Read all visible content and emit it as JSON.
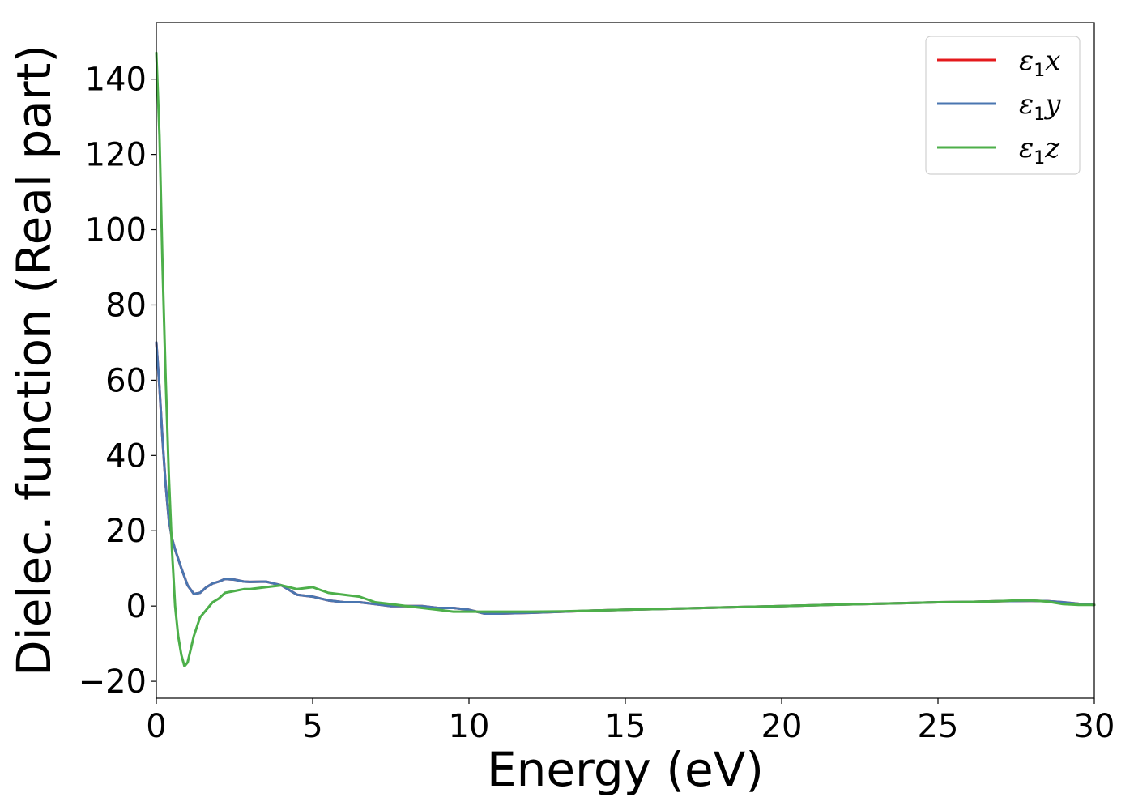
{
  "chart_data": {
    "type": "line",
    "title": "",
    "xlabel": "Energy (eV)",
    "ylabel": "Dielec. function (Real part)",
    "xlim": [
      0,
      30
    ],
    "ylim": [
      -24.5,
      155
    ],
    "xticks": [
      0,
      5,
      10,
      15,
      20,
      25,
      30
    ],
    "yticks": [
      -20,
      0,
      20,
      40,
      60,
      80,
      100,
      120,
      140
    ],
    "xtick_labels": [
      "0",
      "5",
      "10",
      "15",
      "20",
      "25",
      "30"
    ],
    "ytick_labels": [
      "−20",
      "0",
      "20",
      "40",
      "60",
      "80",
      "100",
      "120",
      "140"
    ],
    "grid": false,
    "legend_position": "top-right",
    "series": [
      {
        "name": "ε1x",
        "legend_symbol": "ε",
        "legend_sub": "1",
        "legend_var": "x",
        "color": "#e41a1c",
        "x": [
          0,
          0.1,
          0.2,
          0.3,
          0.4,
          0.5,
          0.6,
          0.8,
          1.0,
          1.2,
          1.4,
          1.6,
          1.8,
          2.0,
          2.2,
          2.5,
          2.8,
          3.0,
          3.5,
          4.0,
          4.5,
          5.0,
          5.5,
          6.0,
          6.5,
          7.0,
          7.5,
          8.0,
          8.5,
          9.0,
          9.5,
          10.0,
          10.5,
          11.0,
          12.0,
          13.0,
          14.0,
          15.0,
          16.0,
          17.0,
          18.0,
          19.0,
          20.0,
          21.0,
          22.0,
          23.0,
          24.0,
          25.0,
          26.0,
          27.0,
          28.0,
          28.5,
          29.0,
          29.5,
          30.0
        ],
        "y": [
          70,
          58,
          44,
          32,
          23,
          18,
          15,
          10,
          5.5,
          3.2,
          3.5,
          5.0,
          6.0,
          6.5,
          7.2,
          7.0,
          6.5,
          6.4,
          6.5,
          5.5,
          3.0,
          2.5,
          1.5,
          1.0,
          1.0,
          0.5,
          0.0,
          0.0,
          0.0,
          -0.5,
          -0.5,
          -1.0,
          -2.0,
          -2.0,
          -1.8,
          -1.5,
          -1.2,
          -1.0,
          -0.8,
          -0.6,
          -0.4,
          -0.2,
          0.0,
          0.2,
          0.4,
          0.6,
          0.8,
          1.0,
          1.1,
          1.3,
          1.4,
          1.3,
          1.0,
          0.6,
          0.3
        ]
      },
      {
        "name": "ε1y",
        "legend_symbol": "ε",
        "legend_sub": "1",
        "legend_var": "y",
        "color": "#4a76b0",
        "x": [
          0,
          0.1,
          0.2,
          0.3,
          0.4,
          0.5,
          0.6,
          0.8,
          1.0,
          1.2,
          1.4,
          1.6,
          1.8,
          2.0,
          2.2,
          2.5,
          2.8,
          3.0,
          3.5,
          4.0,
          4.5,
          5.0,
          5.5,
          6.0,
          6.5,
          7.0,
          7.5,
          8.0,
          8.5,
          9.0,
          9.5,
          10.0,
          10.5,
          11.0,
          12.0,
          13.0,
          14.0,
          15.0,
          16.0,
          17.0,
          18.0,
          19.0,
          20.0,
          21.0,
          22.0,
          23.0,
          24.0,
          25.0,
          26.0,
          27.0,
          28.0,
          28.5,
          29.0,
          29.5,
          30.0
        ],
        "y": [
          70,
          58,
          44,
          32,
          23,
          18,
          15,
          10,
          5.5,
          3.2,
          3.5,
          5.0,
          6.0,
          6.5,
          7.2,
          7.0,
          6.5,
          6.4,
          6.5,
          5.5,
          3.0,
          2.5,
          1.5,
          1.0,
          1.0,
          0.5,
          0.0,
          0.0,
          0.0,
          -0.5,
          -0.5,
          -1.0,
          -2.0,
          -2.0,
          -1.8,
          -1.5,
          -1.2,
          -1.0,
          -0.8,
          -0.6,
          -0.4,
          -0.2,
          0.0,
          0.2,
          0.4,
          0.6,
          0.8,
          1.0,
          1.1,
          1.3,
          1.4,
          1.3,
          1.0,
          0.6,
          0.3
        ]
      },
      {
        "name": "ε1z",
        "legend_symbol": "ε",
        "legend_sub": "1",
        "legend_var": "z",
        "color": "#4daf4a",
        "x": [
          0,
          0.1,
          0.2,
          0.3,
          0.4,
          0.5,
          0.6,
          0.7,
          0.8,
          0.9,
          1.0,
          1.2,
          1.4,
          1.6,
          1.8,
          2.0,
          2.2,
          2.5,
          2.8,
          3.0,
          3.5,
          4.0,
          4.5,
          5.0,
          5.5,
          6.0,
          6.5,
          7.0,
          7.5,
          8.0,
          8.5,
          9.0,
          9.5,
          10.0,
          10.5,
          11.0,
          12.0,
          13.0,
          14.0,
          15.0,
          16.0,
          17.0,
          18.0,
          19.0,
          20.0,
          21.0,
          22.0,
          23.0,
          24.0,
          25.0,
          26.0,
          27.0,
          27.5,
          28.0,
          28.5,
          29.0,
          29.5,
          30.0
        ],
        "y": [
          147,
          125,
          90,
          60,
          35,
          15,
          0,
          -8,
          -13,
          -16,
          -15,
          -8,
          -3,
          -1,
          1,
          2,
          3.5,
          4.0,
          4.5,
          4.5,
          5.0,
          5.5,
          4.5,
          5.0,
          3.5,
          3.0,
          2.5,
          1.0,
          0.5,
          0.0,
          -0.5,
          -1.0,
          -1.5,
          -1.5,
          -1.5,
          -1.5,
          -1.5,
          -1.4,
          -1.2,
          -1.0,
          -0.8,
          -0.6,
          -0.4,
          -0.2,
          0.0,
          0.2,
          0.4,
          0.6,
          0.8,
          1.0,
          1.1,
          1.3,
          1.5,
          1.5,
          1.2,
          0.5,
          0.3,
          0.3
        ]
      }
    ]
  }
}
